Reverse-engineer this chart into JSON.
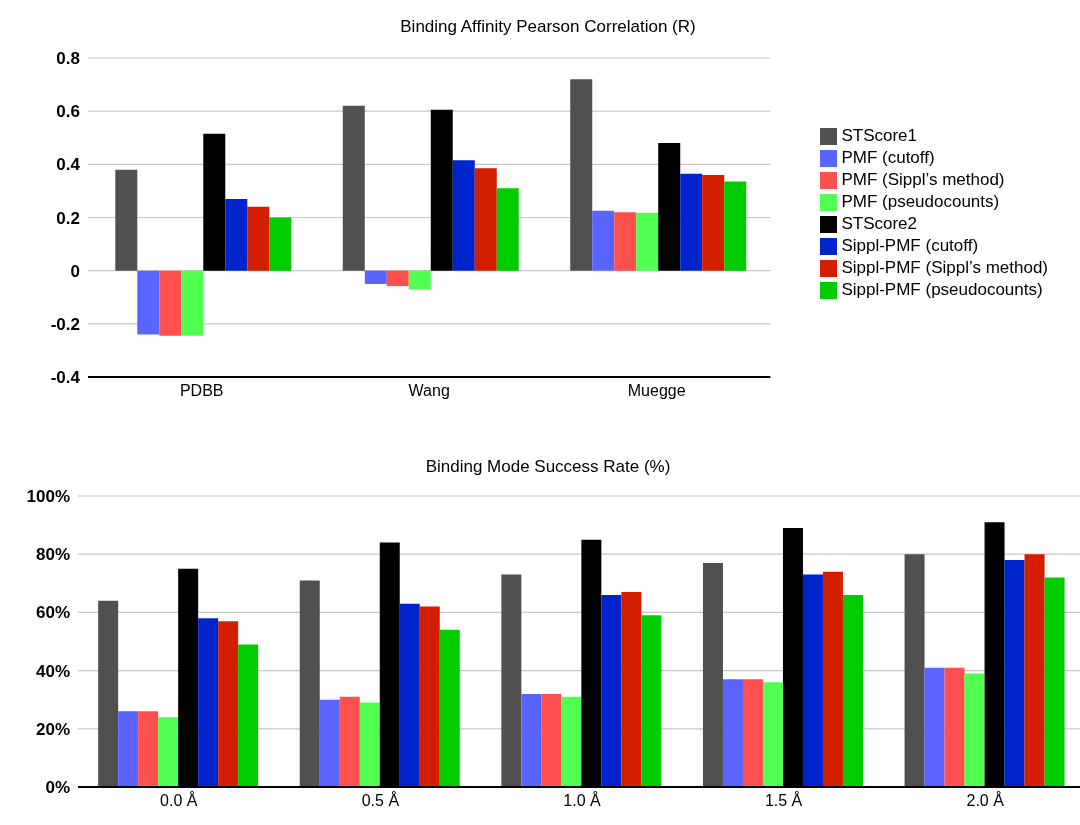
{
  "chart_data": [
    {
      "type": "bar",
      "title": "Binding Affinity Pearson Correlation (R)",
      "categories": [
        "PDBB",
        "Wang",
        "Muegge"
      ],
      "series": [
        {
          "name": "STScore1",
          "color": "#505050",
          "values": [
            0.38,
            0.62,
            0.72
          ]
        },
        {
          "name": "PMF (cutoff)",
          "color": "#5a64ff",
          "values": [
            -0.24,
            -0.05,
            0.225
          ]
        },
        {
          "name": "PMF (Sippl’s method)",
          "color": "#ff5050",
          "values": [
            -0.245,
            -0.058,
            0.22
          ]
        },
        {
          "name": "PMF (pseudocounts)",
          "color": "#50ff50",
          "values": [
            -0.245,
            -0.07,
            0.218
          ]
        },
        {
          "name": "STScore2",
          "color": "#000000",
          "values": [
            0.515,
            0.605,
            0.48
          ]
        },
        {
          "name": "Sippl-PMF (cutoff)",
          "color": "#0024cc",
          "values": [
            0.27,
            0.415,
            0.365
          ]
        },
        {
          "name": "Sippl-PMF (Sippl’s method)",
          "color": "#d41e00",
          "values": [
            0.24,
            0.385,
            0.36
          ]
        },
        {
          "name": "Sippl-PMF (pseudocounts)",
          "color": "#00cc00",
          "values": [
            0.2,
            0.31,
            0.335
          ]
        }
      ],
      "ylim": [
        -0.4,
        0.8
      ],
      "yticks": [
        -0.4,
        -0.2,
        0,
        0.2,
        0.4,
        0.6,
        0.8
      ],
      "grid": "y",
      "legend": "right"
    },
    {
      "type": "bar",
      "title": "Binding Mode Success Rate (%)",
      "categories": [
        "0.0 Å",
        "0.5 Å",
        "1.0 Å",
        "1.5 Å",
        "2.0 Å"
      ],
      "series": [
        {
          "color": "#505050",
          "values": [
            64,
            71,
            73,
            77,
            80
          ]
        },
        {
          "color": "#5a64ff",
          "values": [
            26,
            30,
            32,
            37,
            41
          ]
        },
        {
          "color": "#ff5050",
          "values": [
            26,
            31,
            32,
            37,
            41
          ]
        },
        {
          "color": "#50ff50",
          "values": [
            24,
            29,
            31,
            36,
            39
          ]
        },
        {
          "color": "#000000",
          "values": [
            75,
            84,
            85,
            89,
            91
          ]
        },
        {
          "color": "#0024cc",
          "values": [
            58,
            63,
            66,
            73,
            78
          ]
        },
        {
          "color": "#d41e00",
          "values": [
            57,
            62,
            67,
            74,
            80
          ]
        },
        {
          "color": "#00cc00",
          "values": [
            49,
            54,
            59,
            66,
            72
          ]
        }
      ],
      "ylim": [
        0,
        100
      ],
      "yticks": [
        {
          "value": 0,
          "label": "0%"
        },
        {
          "value": 20,
          "label": "20%"
        },
        {
          "value": 40,
          "label": "40%"
        },
        {
          "value": 60,
          "label": "60%"
        },
        {
          "value": 80,
          "label": "80%"
        },
        {
          "value": 100,
          "label": "100%"
        }
      ],
      "grid": "y"
    }
  ]
}
